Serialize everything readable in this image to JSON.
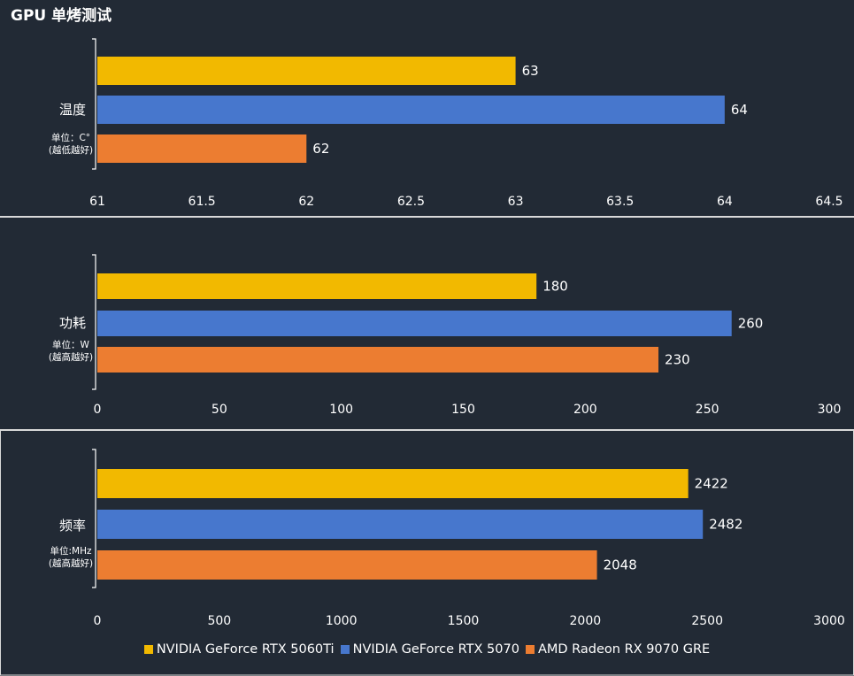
{
  "title": "GPU 单烤测试",
  "colors": {
    "background": "#222a35",
    "separator": "#d9d9d9",
    "series": [
      "#f2b900",
      "#4777cd",
      "#ec7d31"
    ]
  },
  "legend": {
    "items": [
      "NVIDIA GeForce RTX 5060Ti",
      "NVIDIA GeForce RTX 5070",
      "AMD Radeon RX 9070 GRE"
    ]
  },
  "chart_data": [
    {
      "type": "bar",
      "orientation": "horizontal",
      "category": "温度",
      "unit_lines": [
        "单位：C°",
        "(越低越好)"
      ],
      "series": [
        {
          "name": "NVIDIA GeForce RTX 5060Ti",
          "value": 63
        },
        {
          "name": "NVIDIA GeForce RTX 5070",
          "value": 64
        },
        {
          "name": "AMD Radeon RX 9070 GRE",
          "value": 62
        }
      ],
      "xlim": [
        61,
        64.5
      ],
      "ticks": [
        "61",
        "61.5",
        "62",
        "62.5",
        "63",
        "63.5",
        "64",
        "64.5"
      ]
    },
    {
      "type": "bar",
      "orientation": "horizontal",
      "category": "功耗",
      "unit_lines": [
        "单位：W",
        "(越高越好)"
      ],
      "series": [
        {
          "name": "NVIDIA GeForce RTX 5060Ti",
          "value": 180
        },
        {
          "name": "NVIDIA GeForce RTX 5070",
          "value": 260
        },
        {
          "name": "AMD Radeon RX 9070 GRE",
          "value": 230
        }
      ],
      "xlim": [
        0,
        300
      ],
      "ticks": [
        "0",
        "50",
        "100",
        "150",
        "200",
        "250",
        "300"
      ]
    },
    {
      "type": "bar",
      "orientation": "horizontal",
      "category": "频率",
      "unit_lines": [
        "单位:MHz",
        "(越高越好)"
      ],
      "series": [
        {
          "name": "NVIDIA GeForce RTX 5060Ti",
          "value": 2422
        },
        {
          "name": "NVIDIA GeForce RTX 5070",
          "value": 2482
        },
        {
          "name": "AMD Radeon RX 9070 GRE",
          "value": 2048
        }
      ],
      "xlim": [
        0,
        3000
      ],
      "ticks": [
        "0",
        "500",
        "1000",
        "1500",
        "2000",
        "2500",
        "3000"
      ]
    }
  ]
}
